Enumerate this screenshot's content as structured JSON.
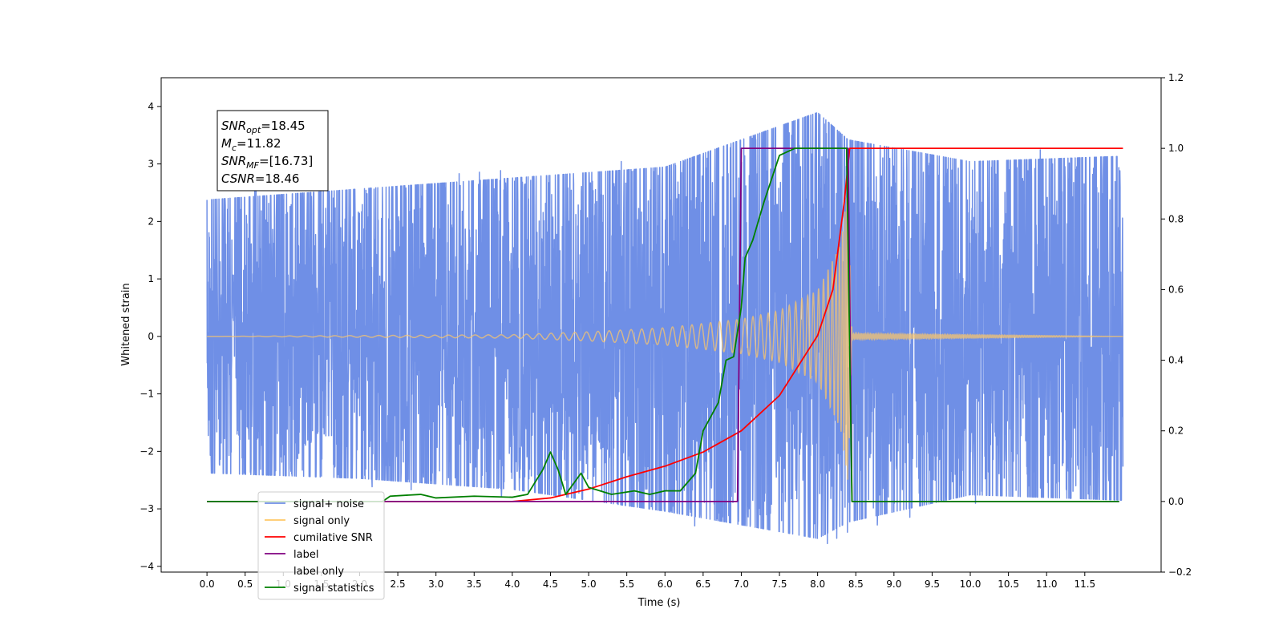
{
  "chart_data": {
    "type": "line",
    "xlabel": "Time (s)",
    "ylabel": "Whitened strain",
    "xlim": [
      -0.6,
      12.5
    ],
    "ylim": [
      -4.1,
      4.5
    ],
    "y2lim": [
      -0.2,
      1.2
    ],
    "x_ticks": [
      0.0,
      0.5,
      1.0,
      1.5,
      2.0,
      2.5,
      3.0,
      3.5,
      4.0,
      4.5,
      5.0,
      5.5,
      6.0,
      6.5,
      7.0,
      7.5,
      8.0,
      8.5,
      9.0,
      9.5,
      10.0,
      10.5,
      11.0,
      11.5
    ],
    "x_tick_labels": [
      "0.0",
      "0.5",
      "1.0",
      "1.5",
      "2.0",
      "2.5",
      "3.0",
      "3.5",
      "4.0",
      "4.5",
      "5.0",
      "5.5",
      "6.0",
      "6.5",
      "7.0",
      "7.5",
      "8.0",
      "8.5",
      "9.0",
      "9.5",
      "10.0",
      "10.5",
      "11.0",
      "11.5"
    ],
    "y_ticks": [
      -4,
      -3,
      -2,
      -1,
      0,
      1,
      2,
      3,
      4
    ],
    "y_tick_labels": [
      "−4",
      "−3",
      "−2",
      "−1",
      "0",
      "1",
      "2",
      "3",
      "4"
    ],
    "y2_ticks": [
      -0.2,
      0.0,
      0.2,
      0.4,
      0.6,
      0.8,
      1.0,
      1.2
    ],
    "y2_tick_labels": [
      "−0.2",
      "0.0",
      "0.2",
      "0.4",
      "0.6",
      "0.8",
      "1.0",
      "1.2"
    ],
    "legend_position": "lower-left",
    "annotation": [
      {
        "main": "SNR",
        "sub": "opt",
        "value": "=18.45"
      },
      {
        "main": "M",
        "sub": "c",
        "value": "=11.82"
      },
      {
        "main": "SNR",
        "sub": "MF",
        "value": "=[16.73]"
      },
      {
        "main": "CSNR",
        "sub": "",
        "value": "=18.46"
      }
    ],
    "series": [
      {
        "name": "signal+ noise",
        "color": "#6f8fe6",
        "axis": "left",
        "kind": "noise",
        "x_range": [
          0.0,
          12.0
        ],
        "envelope": [
          {
            "x": 0.0,
            "y_max": 2.5,
            "y_min": -2.5
          },
          {
            "x": 2.0,
            "y_max": 2.7,
            "y_min": -2.6
          },
          {
            "x": 4.0,
            "y_max": 2.9,
            "y_min": -2.8
          },
          {
            "x": 6.0,
            "y_max": 3.1,
            "y_min": -3.2
          },
          {
            "x": 8.0,
            "y_max": 4.1,
            "y_min": -3.7
          },
          {
            "x": 8.4,
            "y_max": 3.6,
            "y_min": -3.4
          },
          {
            "x": 10.0,
            "y_max": 3.2,
            "y_min": -2.9
          },
          {
            "x": 12.0,
            "y_max": 3.3,
            "y_min": -3.0
          }
        ]
      },
      {
        "name": "signal only",
        "color": "#ffc866",
        "axis": "left",
        "kind": "chirp",
        "x_range": [
          0.0,
          12.0
        ],
        "merger_time": 8.4,
        "amplitude_samples": [
          {
            "x": 0.0,
            "y": 0.0
          },
          {
            "x": 4.0,
            "y": 0.03
          },
          {
            "x": 5.0,
            "y": 0.08
          },
          {
            "x": 6.0,
            "y": 0.15
          },
          {
            "x": 7.0,
            "y": 0.3
          },
          {
            "x": 7.5,
            "y": 0.45
          },
          {
            "x": 8.0,
            "y": 0.8
          },
          {
            "x": 8.3,
            "y": 1.6
          },
          {
            "x": 8.4,
            "y": 2.6
          },
          {
            "x": 8.45,
            "y": 0.05
          },
          {
            "x": 12.0,
            "y": 0.0
          }
        ]
      },
      {
        "name": "cumilative SNR",
        "color": "#ff0000",
        "axis": "right",
        "points": [
          {
            "x": 0.0,
            "y": 0.0
          },
          {
            "x": 4.0,
            "y": 0.0
          },
          {
            "x": 4.5,
            "y": 0.01
          },
          {
            "x": 5.0,
            "y": 0.035
          },
          {
            "x": 5.5,
            "y": 0.07
          },
          {
            "x": 6.0,
            "y": 0.1
          },
          {
            "x": 6.5,
            "y": 0.14
          },
          {
            "x": 7.0,
            "y": 0.2
          },
          {
            "x": 7.5,
            "y": 0.3
          },
          {
            "x": 8.0,
            "y": 0.47
          },
          {
            "x": 8.2,
            "y": 0.6
          },
          {
            "x": 8.35,
            "y": 0.85
          },
          {
            "x": 8.42,
            "y": 1.0
          },
          {
            "x": 12.0,
            "y": 1.0
          }
        ]
      },
      {
        "name": "label",
        "color": "#800080",
        "axis": "right",
        "points": [
          {
            "x": 0.0,
            "y": 0.0
          },
          {
            "x": 6.95,
            "y": 0.0
          },
          {
            "x": 7.0,
            "y": 1.0
          },
          {
            "x": 8.4,
            "y": 1.0
          },
          {
            "x": 8.45,
            "y": 0.0
          },
          {
            "x": 11.95,
            "y": 0.0
          }
        ]
      },
      {
        "name": "label only",
        "color": "#ffffff",
        "axis": "right",
        "legend_only": true,
        "points": []
      },
      {
        "name": "signal statistics",
        "color": "#008000",
        "axis": "right",
        "points": [
          {
            "x": 0.0,
            "y": 0.0
          },
          {
            "x": 2.3,
            "y": 0.0
          },
          {
            "x": 2.4,
            "y": 0.015
          },
          {
            "x": 2.8,
            "y": 0.02
          },
          {
            "x": 3.0,
            "y": 0.01
          },
          {
            "x": 3.5,
            "y": 0.015
          },
          {
            "x": 4.0,
            "y": 0.012
          },
          {
            "x": 4.2,
            "y": 0.02
          },
          {
            "x": 4.4,
            "y": 0.09
          },
          {
            "x": 4.5,
            "y": 0.14
          },
          {
            "x": 4.6,
            "y": 0.09
          },
          {
            "x": 4.7,
            "y": 0.02
          },
          {
            "x": 4.9,
            "y": 0.08
          },
          {
            "x": 5.0,
            "y": 0.04
          },
          {
            "x": 5.3,
            "y": 0.02
          },
          {
            "x": 5.6,
            "y": 0.03
          },
          {
            "x": 5.8,
            "y": 0.02
          },
          {
            "x": 6.0,
            "y": 0.03
          },
          {
            "x": 6.2,
            "y": 0.03
          },
          {
            "x": 6.4,
            "y": 0.08
          },
          {
            "x": 6.5,
            "y": 0.2
          },
          {
            "x": 6.7,
            "y": 0.28
          },
          {
            "x": 6.8,
            "y": 0.4
          },
          {
            "x": 6.9,
            "y": 0.41
          },
          {
            "x": 7.0,
            "y": 0.55
          },
          {
            "x": 7.05,
            "y": 0.69
          },
          {
            "x": 7.15,
            "y": 0.74
          },
          {
            "x": 7.3,
            "y": 0.85
          },
          {
            "x": 7.5,
            "y": 0.98
          },
          {
            "x": 7.7,
            "y": 1.0
          },
          {
            "x": 8.38,
            "y": 1.0
          },
          {
            "x": 8.45,
            "y": 0.0
          },
          {
            "x": 11.95,
            "y": 0.0
          }
        ]
      }
    ]
  }
}
